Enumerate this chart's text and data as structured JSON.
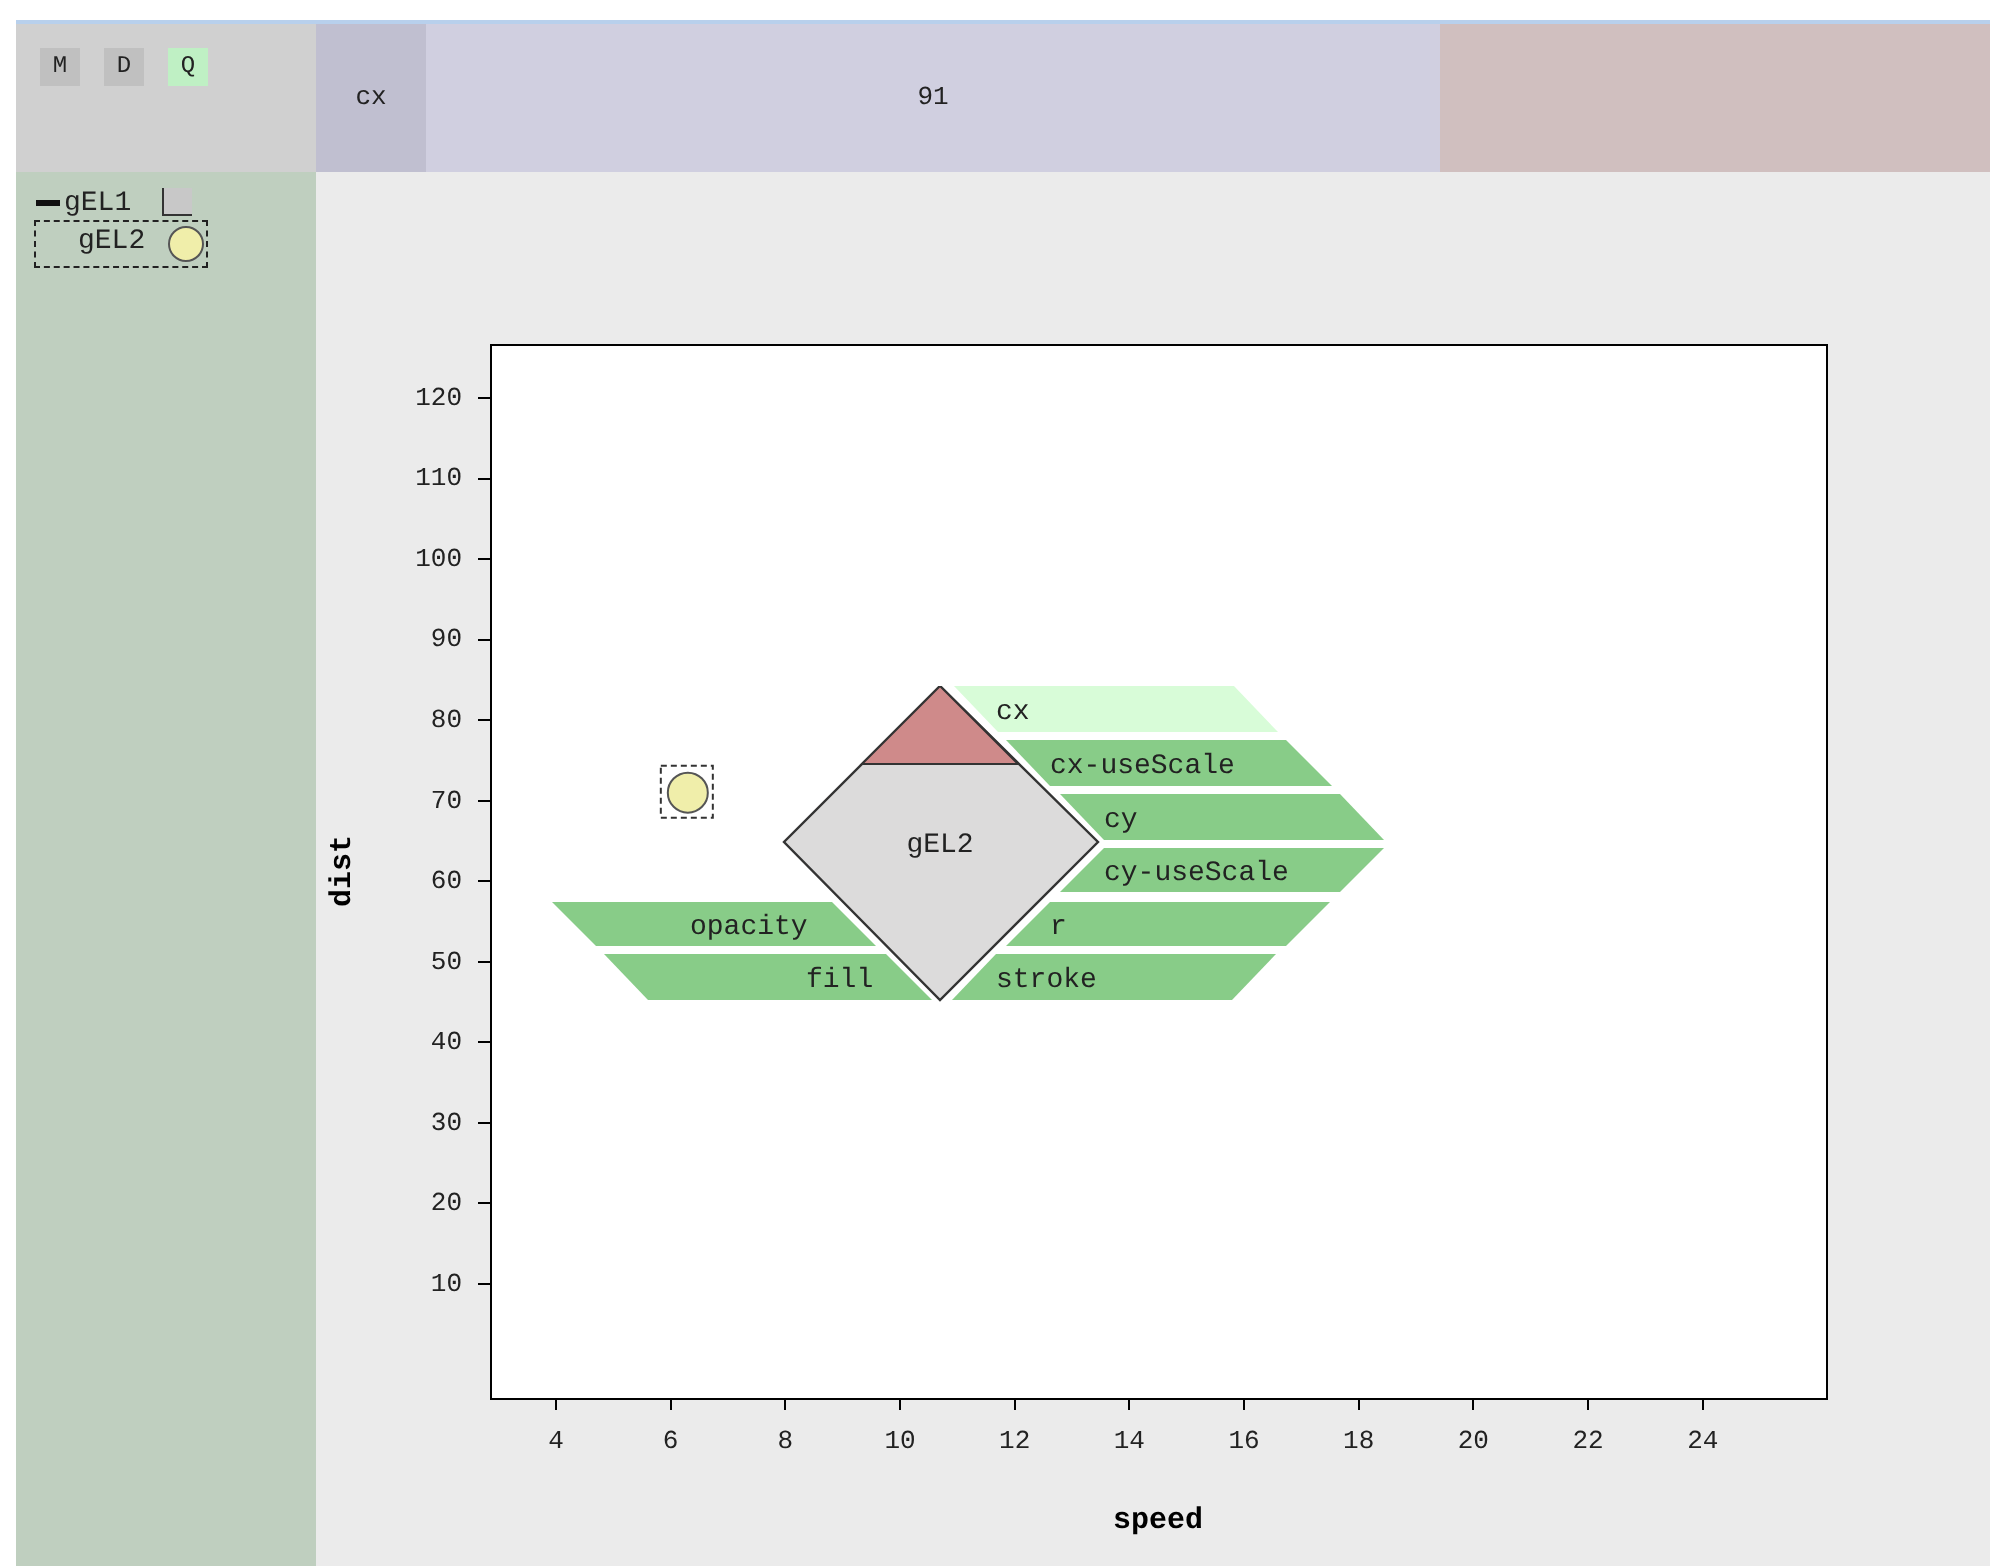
{
  "chart_data": {
    "type": "scatter",
    "xlabel": "speed",
    "ylabel": "dist",
    "x": [
      6.3
    ],
    "values": [
      71
    ],
    "color": "#f0eeaa",
    "marker": "circle",
    "xlim": [
      2.85,
      26.15
    ],
    "xticks": [
      4,
      6,
      8,
      10,
      12,
      14,
      16,
      18,
      20,
      22,
      24
    ],
    "ylim": [
      -4.15,
      126.7
    ],
    "yticks": [
      10,
      20,
      30,
      40,
      50,
      60,
      70,
      80,
      90,
      100,
      110,
      120
    ],
    "grid": false,
    "legend": false,
    "annotations": [
      "M",
      "D",
      "Q",
      "cx",
      "91",
      "gEL1",
      "gEL2",
      "gEL2",
      "cx",
      "cx-useScale",
      "cy",
      "cy-useScale",
      "r",
      "opacity",
      "fill",
      "stroke"
    ]
  }
}
